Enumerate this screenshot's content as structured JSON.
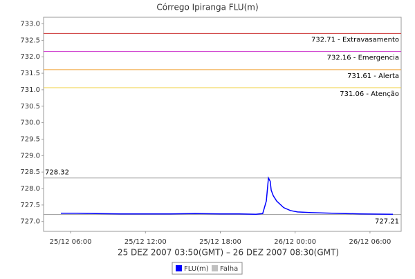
{
  "chart_data": {
    "type": "line",
    "title": "Córrego Ipiranga FLU(m)",
    "subtitle": "25 DEZ 2007 03:50(GMT) – 26 DEZ 2007 08:30(GMT)",
    "x": [
      5.22,
      6.5,
      8,
      10,
      12,
      14,
      16,
      18,
      19.5,
      20.86,
      21.4,
      21.69,
      21.86,
      22.0,
      22.08,
      22.25,
      22.52,
      23.08,
      23.63,
      24.19,
      25.3,
      26.96,
      29.18,
      31.84
    ],
    "series": [
      {
        "name": "FLU(m)",
        "color": "#0000ff",
        "values": [
          727.25,
          727.25,
          727.24,
          727.23,
          727.23,
          727.23,
          727.24,
          727.23,
          727.23,
          727.22,
          727.24,
          727.62,
          728.32,
          728.22,
          727.95,
          727.78,
          727.62,
          727.42,
          727.33,
          727.29,
          727.27,
          727.25,
          727.23,
          727.22
        ]
      }
    ],
    "legend_extra": {
      "name": "Falha",
      "color": "#c0c0c0"
    },
    "thresholds": [
      {
        "value": 732.71,
        "label": "732.71 - Extravasamento",
        "color": "#cc3333"
      },
      {
        "value": 732.16,
        "label": "732.16 - Emergencia",
        "color": "#cc33cc"
      },
      {
        "value": 731.61,
        "label": "731.61 - Alerta",
        "color": "#f0a030"
      },
      {
        "value": 731.06,
        "label": "731.06 - Atenção",
        "color": "#f0d040"
      }
    ],
    "max_marker": {
      "value": 728.32,
      "color": "#999999"
    },
    "min_marker": {
      "value": 727.21,
      "color": "#999999"
    },
    "xlim": [
      3.833,
      32.5
    ],
    "xticks": [
      {
        "value": 6,
        "label": "25/12 06:00"
      },
      {
        "value": 12,
        "label": "25/12 12:00"
      },
      {
        "value": 18,
        "label": "25/12 18:00"
      },
      {
        "value": 24,
        "label": "26/12 00:00"
      },
      {
        "value": 30,
        "label": "26/12 06:00"
      }
    ],
    "ylim": [
      726.7,
      733.2
    ],
    "yticks": [
      {
        "value": 727,
        "label": "727.0"
      },
      727.5,
      {
        "value": 728,
        "label": "728.0"
      },
      728.5,
      {
        "value": 729,
        "label": "729.0"
      },
      729.5,
      {
        "value": 730,
        "label": "730.0"
      },
      730.5,
      {
        "value": 731,
        "label": "731.0"
      },
      731.5,
      {
        "value": 732,
        "label": "732.0"
      },
      732.5,
      {
        "value": 733,
        "label": "733.0"
      }
    ]
  }
}
